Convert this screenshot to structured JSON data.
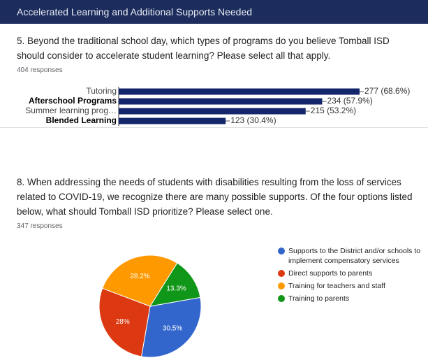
{
  "header": {
    "title": "Accelerated Learning and Additional Supports Needed"
  },
  "chart_data": [
    {
      "type": "bar",
      "orientation": "horizontal",
      "title": "5. Beyond the traditional school day, which types of programs do you believe Tomball ISD should consider to accelerate student learning? Please select all that apply.",
      "subtitle": "404 responses",
      "categories": [
        "Tutoring",
        "Afterschool Programs",
        "Summer learning prog…",
        "Blended Learning"
      ],
      "values": [
        277,
        234,
        215,
        123
      ],
      "value_labels": [
        "277 (68.6%)",
        "234 (57.9%)",
        "215 (53.2%)",
        "123 (30.4%)"
      ],
      "color": "#14266b"
    },
    {
      "type": "pie",
      "title": "8. When addressing the needs of students with disabilities resulting from the loss of services related to COVID-19, we recognize there are many possible supports. Of the four options listed below, what should Tomball ISD prioritize? Please select one.",
      "subtitle": "347 responses",
      "categories": [
        "Supports to the District and/or schools to implement compensatory services",
        "Direct supports to parents",
        "Training for teachers and staff",
        "Training to parents"
      ],
      "values": [
        30.5,
        28,
        28.2,
        13.3
      ],
      "value_labels": [
        "30.5%",
        "28%",
        "28.2%",
        "13.3%"
      ],
      "colors": [
        "#3366cc",
        "#dc3912",
        "#ff9900",
        "#109618"
      ]
    }
  ]
}
